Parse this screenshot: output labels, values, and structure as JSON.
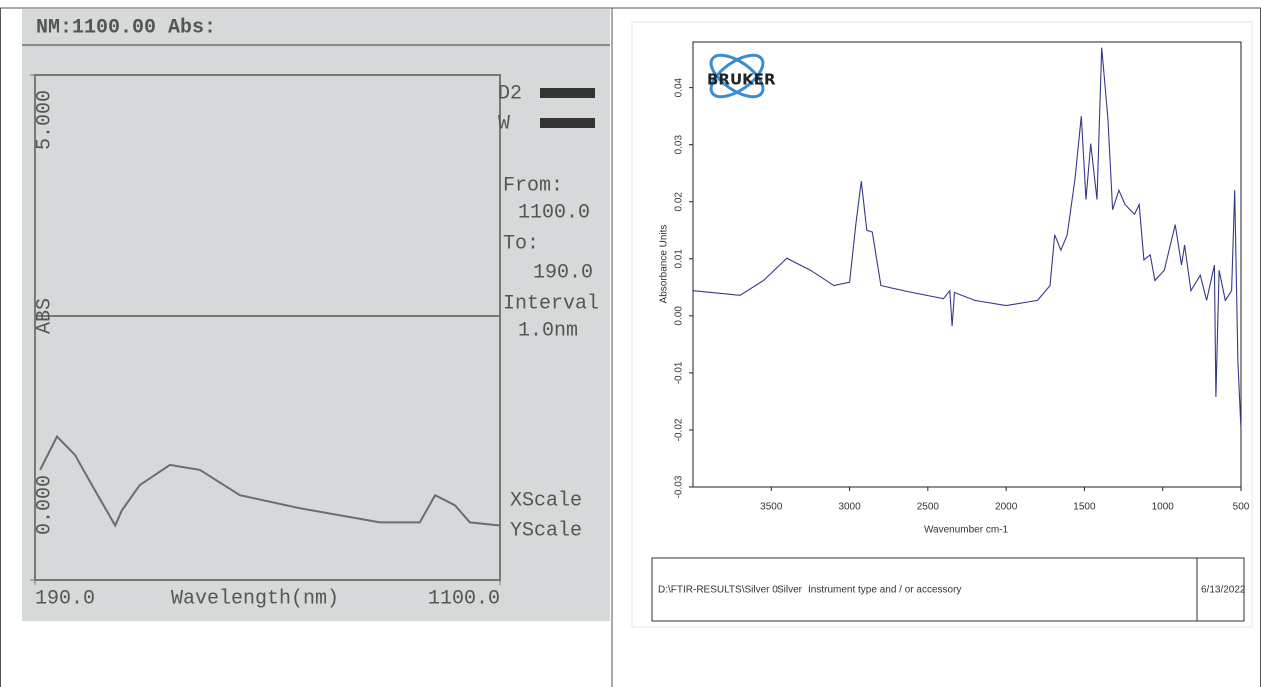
{
  "chart_data": [
    {
      "type": "line",
      "title": "NM:1100.00  Abs:",
      "xlabel": "Wavelength(nm)",
      "ylabel": "ABS",
      "xlim": [
        190,
        1100
      ],
      "xticks": [
        {
          "value": 190,
          "label": "190.0"
        },
        {
          "value": 1100,
          "label": "1100.0"
        }
      ],
      "ylim": [
        0,
        5
      ],
      "yticks": [
        {
          "value": 5,
          "label": "5.000"
        },
        {
          "value": 0,
          "label": "0.000"
        }
      ],
      "annotations": [
        "D2",
        "W",
        "From:",
        "1100.0",
        "To:",
        "190.0",
        "Interval",
        "1.0nm",
        "XScale",
        "YScale"
      ],
      "x": [
        200,
        233,
        268,
        307,
        347,
        360,
        395,
        454,
        513,
        591,
        709,
        865,
        943,
        973,
        1012,
        1041,
        1100
      ],
      "values": [
        1.09,
        1.42,
        1.24,
        0.89,
        0.54,
        0.69,
        0.94,
        1.14,
        1.09,
        0.84,
        0.71,
        0.57,
        0.57,
        0.84,
        0.74,
        0.57,
        0.54
      ],
      "color": "#6a6d6d",
      "grid": false
    },
    {
      "type": "line",
      "logo": "BRUKER",
      "xlabel": "Wavenumber cm-1",
      "ylabel": "Absorbance Units",
      "xlim": [
        4000,
        500
      ],
      "xticks": [
        3500,
        3000,
        2500,
        2000,
        1500,
        1000,
        500
      ],
      "ylim": [
        -0.03,
        0.048
      ],
      "yticks": [
        0.04,
        0.03,
        0.02,
        0.01,
        {
          "value": 0,
          "label": "0.00"
        },
        -0.01,
        -0.02,
        -0.03
      ],
      "footer": [
        "D:\\FTIR-RESULTS\\Silver 0",
        "Silver",
        "Instrument type and / or accessory",
        "6/13/2022"
      ],
      "x": [
        4000,
        3700,
        3550,
        3400,
        3250,
        3100,
        3000,
        2960,
        2925,
        2890,
        2855,
        2800,
        2600,
        2400,
        2360,
        2345,
        2330,
        2200,
        2000,
        1800,
        1720,
        1690,
        1650,
        1610,
        1560,
        1520,
        1490,
        1460,
        1420,
        1390,
        1350,
        1320,
        1280,
        1240,
        1180,
        1150,
        1120,
        1080,
        1050,
        990,
        920,
        880,
        860,
        820,
        760,
        720,
        670,
        660,
        640,
        600,
        560,
        540,
        520,
        500
      ],
      "values": [
        0.0044,
        0.0036,
        0.0062,
        0.0101,
        0.008,
        0.0053,
        0.0059,
        0.016,
        0.0236,
        0.015,
        0.0147,
        0.0053,
        0.0041,
        0.003,
        0.0044,
        -0.0018,
        0.0041,
        0.0027,
        0.0018,
        0.0027,
        0.0053,
        0.0142,
        0.0115,
        0.0142,
        0.024,
        0.035,
        0.0204,
        0.0302,
        0.0204,
        0.047,
        0.0346,
        0.0186,
        0.022,
        0.0195,
        0.0178,
        0.0195,
        0.0098,
        0.0107,
        0.0062,
        0.008,
        0.016,
        0.0089,
        0.0124,
        0.0044,
        0.0071,
        0.0027,
        0.0089,
        -0.0142,
        0.008,
        0.0027,
        0.0044,
        0.022,
        -0.008,
        -0.02
      ],
      "color": "#35398a",
      "grid": false
    }
  ]
}
